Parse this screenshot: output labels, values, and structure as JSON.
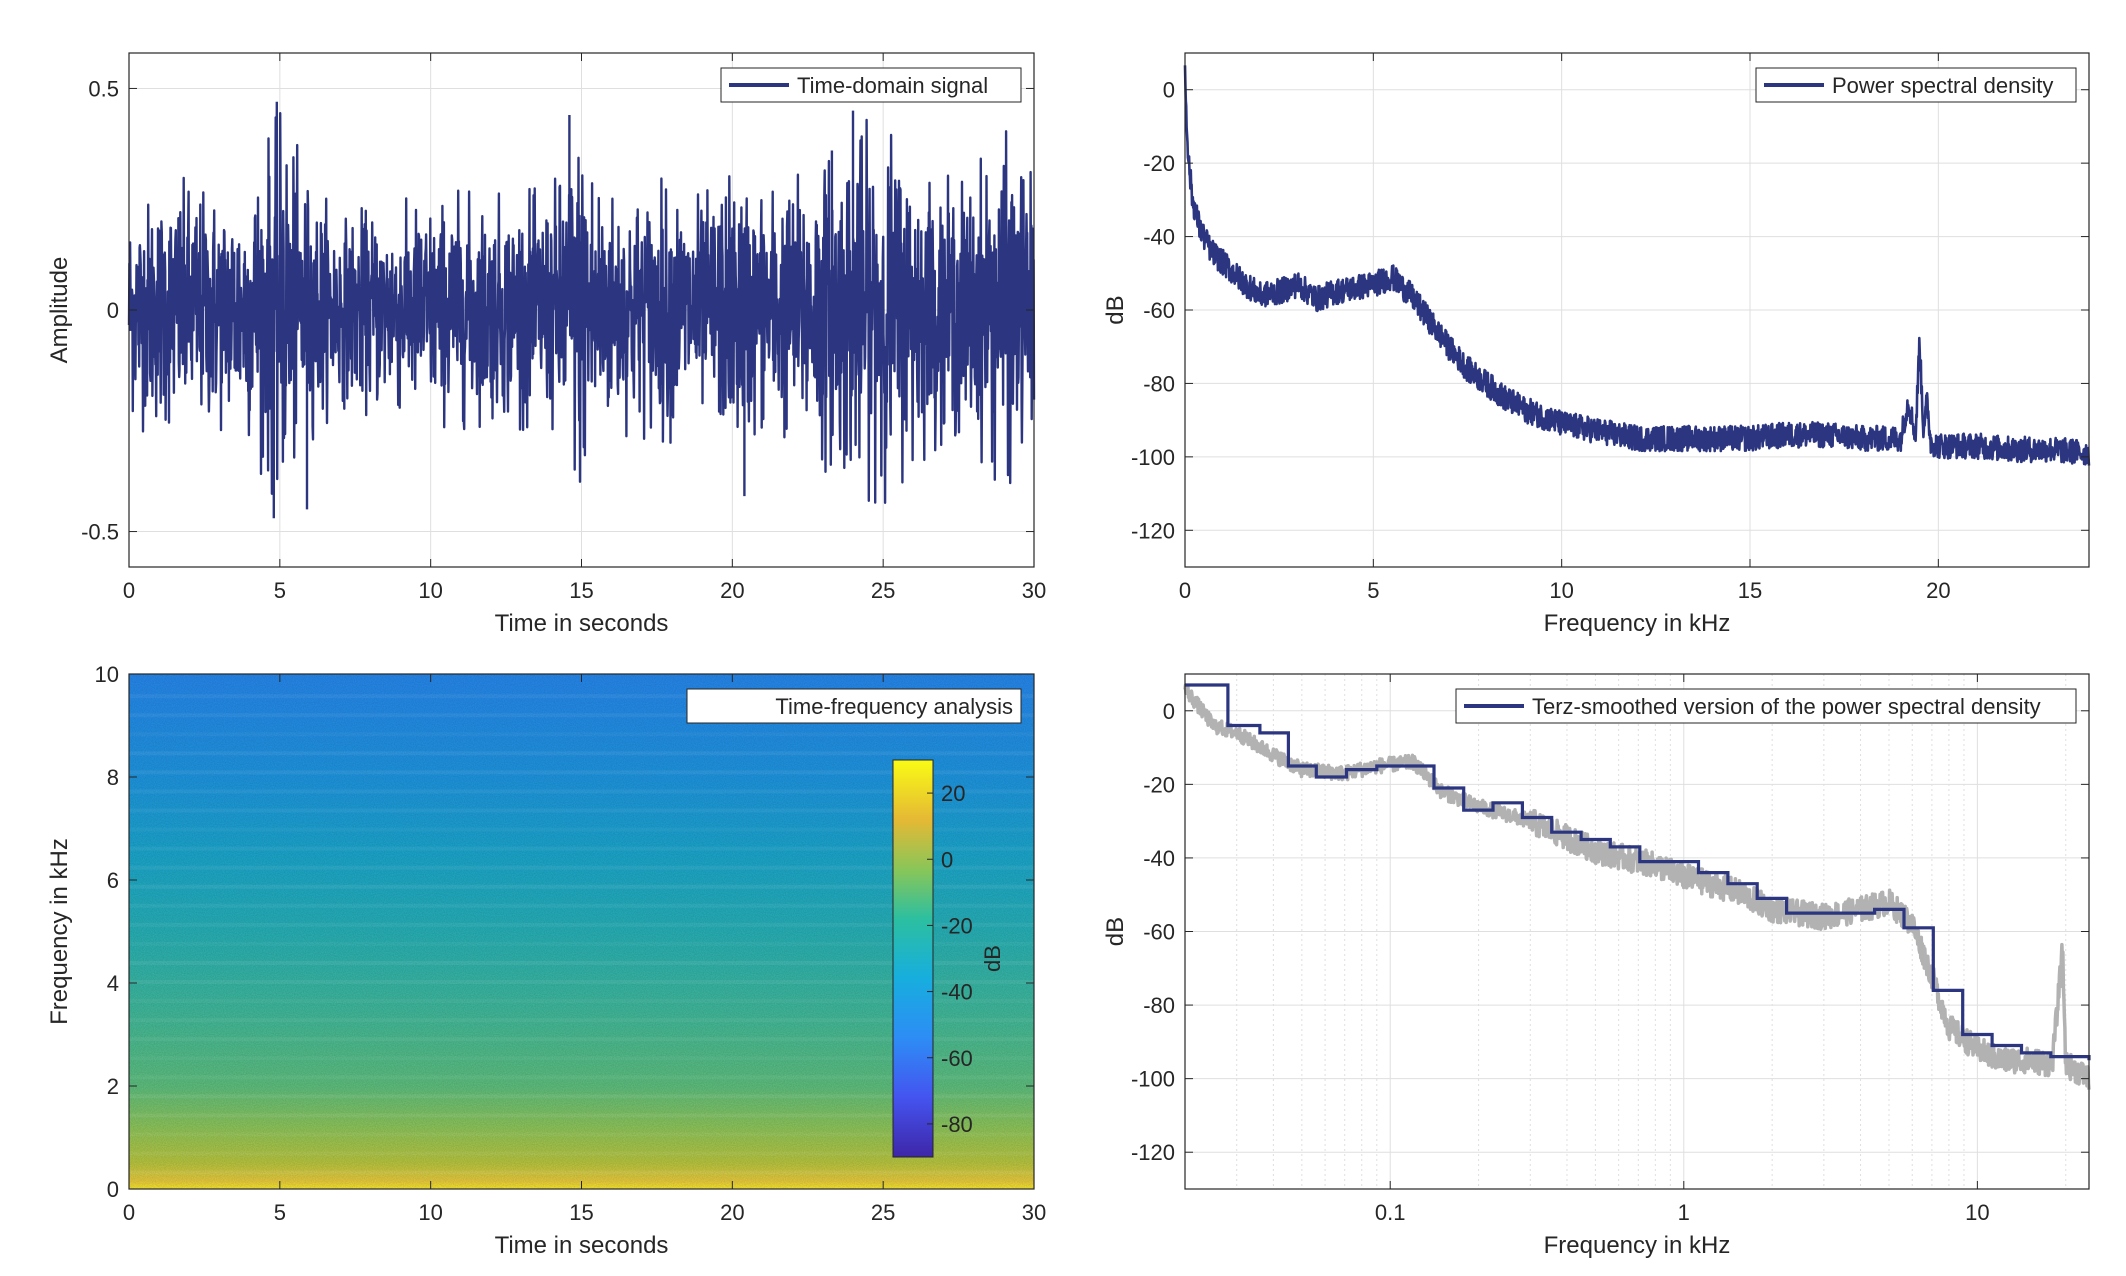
{
  "colors": {
    "line": "#2b3580",
    "grey_line": "#b2b2b2",
    "grid": "#dfdfdf",
    "axis": "#262626"
  },
  "chart_data": [
    {
      "id": "time",
      "type": "line",
      "xlabel": "Time in seconds",
      "ylabel": "Amplitude",
      "xlim": [
        0,
        30
      ],
      "ylim": [
        -0.58,
        0.58
      ],
      "xticks": [
        0,
        5,
        10,
        15,
        20,
        25,
        30
      ],
      "yticks": [
        -0.5,
        0,
        0.5
      ],
      "xtick_labels": [
        "0",
        "5",
        "10",
        "15",
        "20",
        "25",
        "30"
      ],
      "ytick_labels": [
        "-0.5",
        "0",
        "0.5"
      ],
      "grid": true,
      "legend": {
        "position": "top-right",
        "entries": [
          "Time-domain signal"
        ]
      },
      "series": [
        {
          "name": "Time-domain signal",
          "envelope_x": [
            0,
            1,
            2,
            3,
            4,
            5,
            6,
            7,
            8,
            9,
            10,
            11,
            12,
            13,
            14,
            15,
            16,
            17,
            18,
            19,
            20,
            21,
            22,
            23,
            24,
            25,
            26,
            27,
            28,
            29,
            30
          ],
          "envelope_amplitude": [
            0.26,
            0.29,
            0.3,
            0.28,
            0.31,
            0.47,
            0.3,
            0.22,
            0.24,
            0.25,
            0.26,
            0.27,
            0.26,
            0.27,
            0.28,
            0.45,
            0.28,
            0.29,
            0.3,
            0.26,
            0.33,
            0.29,
            0.31,
            0.36,
            0.42,
            0.44,
            0.36,
            0.3,
            0.32,
            0.41,
            0.32
          ],
          "peaks": [
            [
              4.9,
              0.47
            ],
            [
              4.8,
              -0.47
            ],
            [
              5.9,
              -0.45
            ],
            [
              14.6,
              0.44
            ],
            [
              20.4,
              -0.42
            ],
            [
              23.3,
              0.36
            ],
            [
              24.0,
              0.45
            ]
          ]
        }
      ]
    },
    {
      "id": "psd",
      "type": "line",
      "xlabel": "Frequency in kHz",
      "ylabel": "dB",
      "xlim": [
        0,
        24
      ],
      "ylim": [
        -130,
        10
      ],
      "xticks": [
        0,
        5,
        10,
        15,
        20
      ],
      "yticks": [
        -120,
        -100,
        -80,
        -60,
        -40,
        -20,
        0
      ],
      "xtick_labels": [
        "0",
        "5",
        "10",
        "15",
        "20"
      ],
      "ytick_labels": [
        "-120",
        "-100",
        "-80",
        "-60",
        "-40",
        "-20",
        "0"
      ],
      "grid": true,
      "legend": {
        "position": "top-right",
        "entries": [
          "Power spectral density"
        ]
      },
      "series": [
        {
          "name": "Power spectral density",
          "x": [
            0,
            0.05,
            0.1,
            0.2,
            0.4,
            0.7,
            1,
            1.5,
            2,
            2.5,
            3,
            3.5,
            4,
            4.5,
            5,
            5.5,
            6,
            6.5,
            7,
            7.5,
            8,
            8.5,
            9,
            9.5,
            10,
            11,
            12,
            13,
            14,
            15,
            16,
            17,
            18,
            19,
            19.2,
            19.4,
            19.5,
            19.6,
            19.7,
            19.8,
            20,
            21,
            22,
            23,
            24
          ],
          "y": [
            5,
            -10,
            -20,
            -30,
            -38,
            -44,
            -47,
            -52,
            -56,
            -55,
            -53,
            -57,
            -55,
            -54,
            -53,
            -51,
            -56,
            -63,
            -70,
            -76,
            -80,
            -84,
            -87,
            -89,
            -91,
            -93,
            -95,
            -95,
            -95,
            -95,
            -94,
            -94,
            -95,
            -95,
            -85,
            -94,
            -68,
            -92,
            -85,
            -96,
            -97,
            -97,
            -98,
            -98,
            -99
          ]
        }
      ]
    },
    {
      "id": "spectrogram",
      "type": "heatmap",
      "xlabel": "Time in seconds",
      "ylabel": "Frequency in kHz",
      "xlim": [
        0,
        30
      ],
      "ylim": [
        0,
        10
      ],
      "xticks": [
        0,
        5,
        10,
        15,
        20,
        25,
        30
      ],
      "yticks": [
        0,
        2,
        4,
        6,
        8,
        10
      ],
      "xtick_labels": [
        "0",
        "5",
        "10",
        "15",
        "20",
        "25",
        "30"
      ],
      "ytick_labels": [
        "0",
        "2",
        "4",
        "6",
        "8",
        "10"
      ],
      "legend": {
        "position": "top-right",
        "entries": [
          "Time-frequency analysis"
        ]
      },
      "colorbar": {
        "label": "dB",
        "clim": [
          -90,
          30
        ],
        "ticks": [
          -80,
          -60,
          -40,
          -20,
          0,
          20
        ],
        "tick_labels": [
          "-80",
          "-60",
          "-40",
          "-20",
          "0",
          "20"
        ]
      },
      "frequency_profile_khz": [
        0,
        0.1,
        0.3,
        0.6,
        1,
        1.5,
        2,
        3,
        4,
        5,
        6,
        7,
        8,
        9,
        10
      ],
      "level_db": [
        15,
        8,
        2,
        -2,
        -4,
        -8,
        -12,
        -18,
        -20,
        -22,
        -26,
        -30,
        -34,
        -40,
        -44
      ]
    },
    {
      "id": "terz",
      "type": "line",
      "xlabel": "Frequency in kHz",
      "ylabel": "dB",
      "xscale": "log",
      "xlim": [
        0.02,
        24
      ],
      "ylim": [
        -130,
        10
      ],
      "xticks": [
        0.1,
        1,
        10
      ],
      "yticks": [
        -120,
        -100,
        -80,
        -60,
        -40,
        -20,
        0
      ],
      "xtick_labels": [
        "0.1",
        "1",
        "10"
      ],
      "ytick_labels": [
        "-120",
        "-100",
        "-80",
        "-60",
        "-40",
        "-20",
        "0"
      ],
      "grid": true,
      "legend": {
        "position": "top-right",
        "entries": [
          "Terz-smoothed version of the power spectral density"
        ]
      },
      "series": [
        {
          "name": "Terz-smoothed version of the power spectral density",
          "band_edges": [
            0.02,
            0.028,
            0.036,
            0.045,
            0.056,
            0.071,
            0.09,
            0.112,
            0.141,
            0.178,
            0.224,
            0.282,
            0.355,
            0.447,
            0.562,
            0.708,
            0.891,
            1.122,
            1.413,
            1.778,
            2.239,
            2.818,
            3.548,
            4.467,
            5.623,
            7.079,
            8.913,
            11.22,
            14.13,
            17.78,
            24
          ],
          "levels": [
            7,
            -4,
            -6,
            -15,
            -18,
            -16,
            -15,
            -15,
            -21,
            -27,
            -25,
            -29,
            -33,
            -35,
            -37,
            -41,
            -41,
            -44,
            -47,
            -51,
            -55,
            -55,
            -55,
            -54,
            -59,
            -76,
            -88,
            -91,
            -93,
            -94,
            -95
          ]
        },
        {
          "x": [
            0.02,
            0.025,
            0.03,
            0.04,
            0.05,
            0.07,
            0.09,
            0.12,
            0.15,
            0.2,
            0.3,
            0.5,
            0.8,
            1,
            1.5,
            2,
            3,
            4,
            5,
            6,
            7,
            8,
            10,
            12,
            15,
            18,
            19.5,
            20,
            22,
            24
          ],
          "y": [
            6,
            -4,
            -6,
            -12,
            -16,
            -17,
            -15,
            -14,
            -22,
            -26,
            -30,
            -38,
            -42,
            -45,
            -49,
            -54,
            -56,
            -54,
            -52,
            -58,
            -72,
            -86,
            -92,
            -95,
            -95,
            -96,
            -65,
            -96,
            -98,
            -100
          ]
        }
      ]
    }
  ]
}
